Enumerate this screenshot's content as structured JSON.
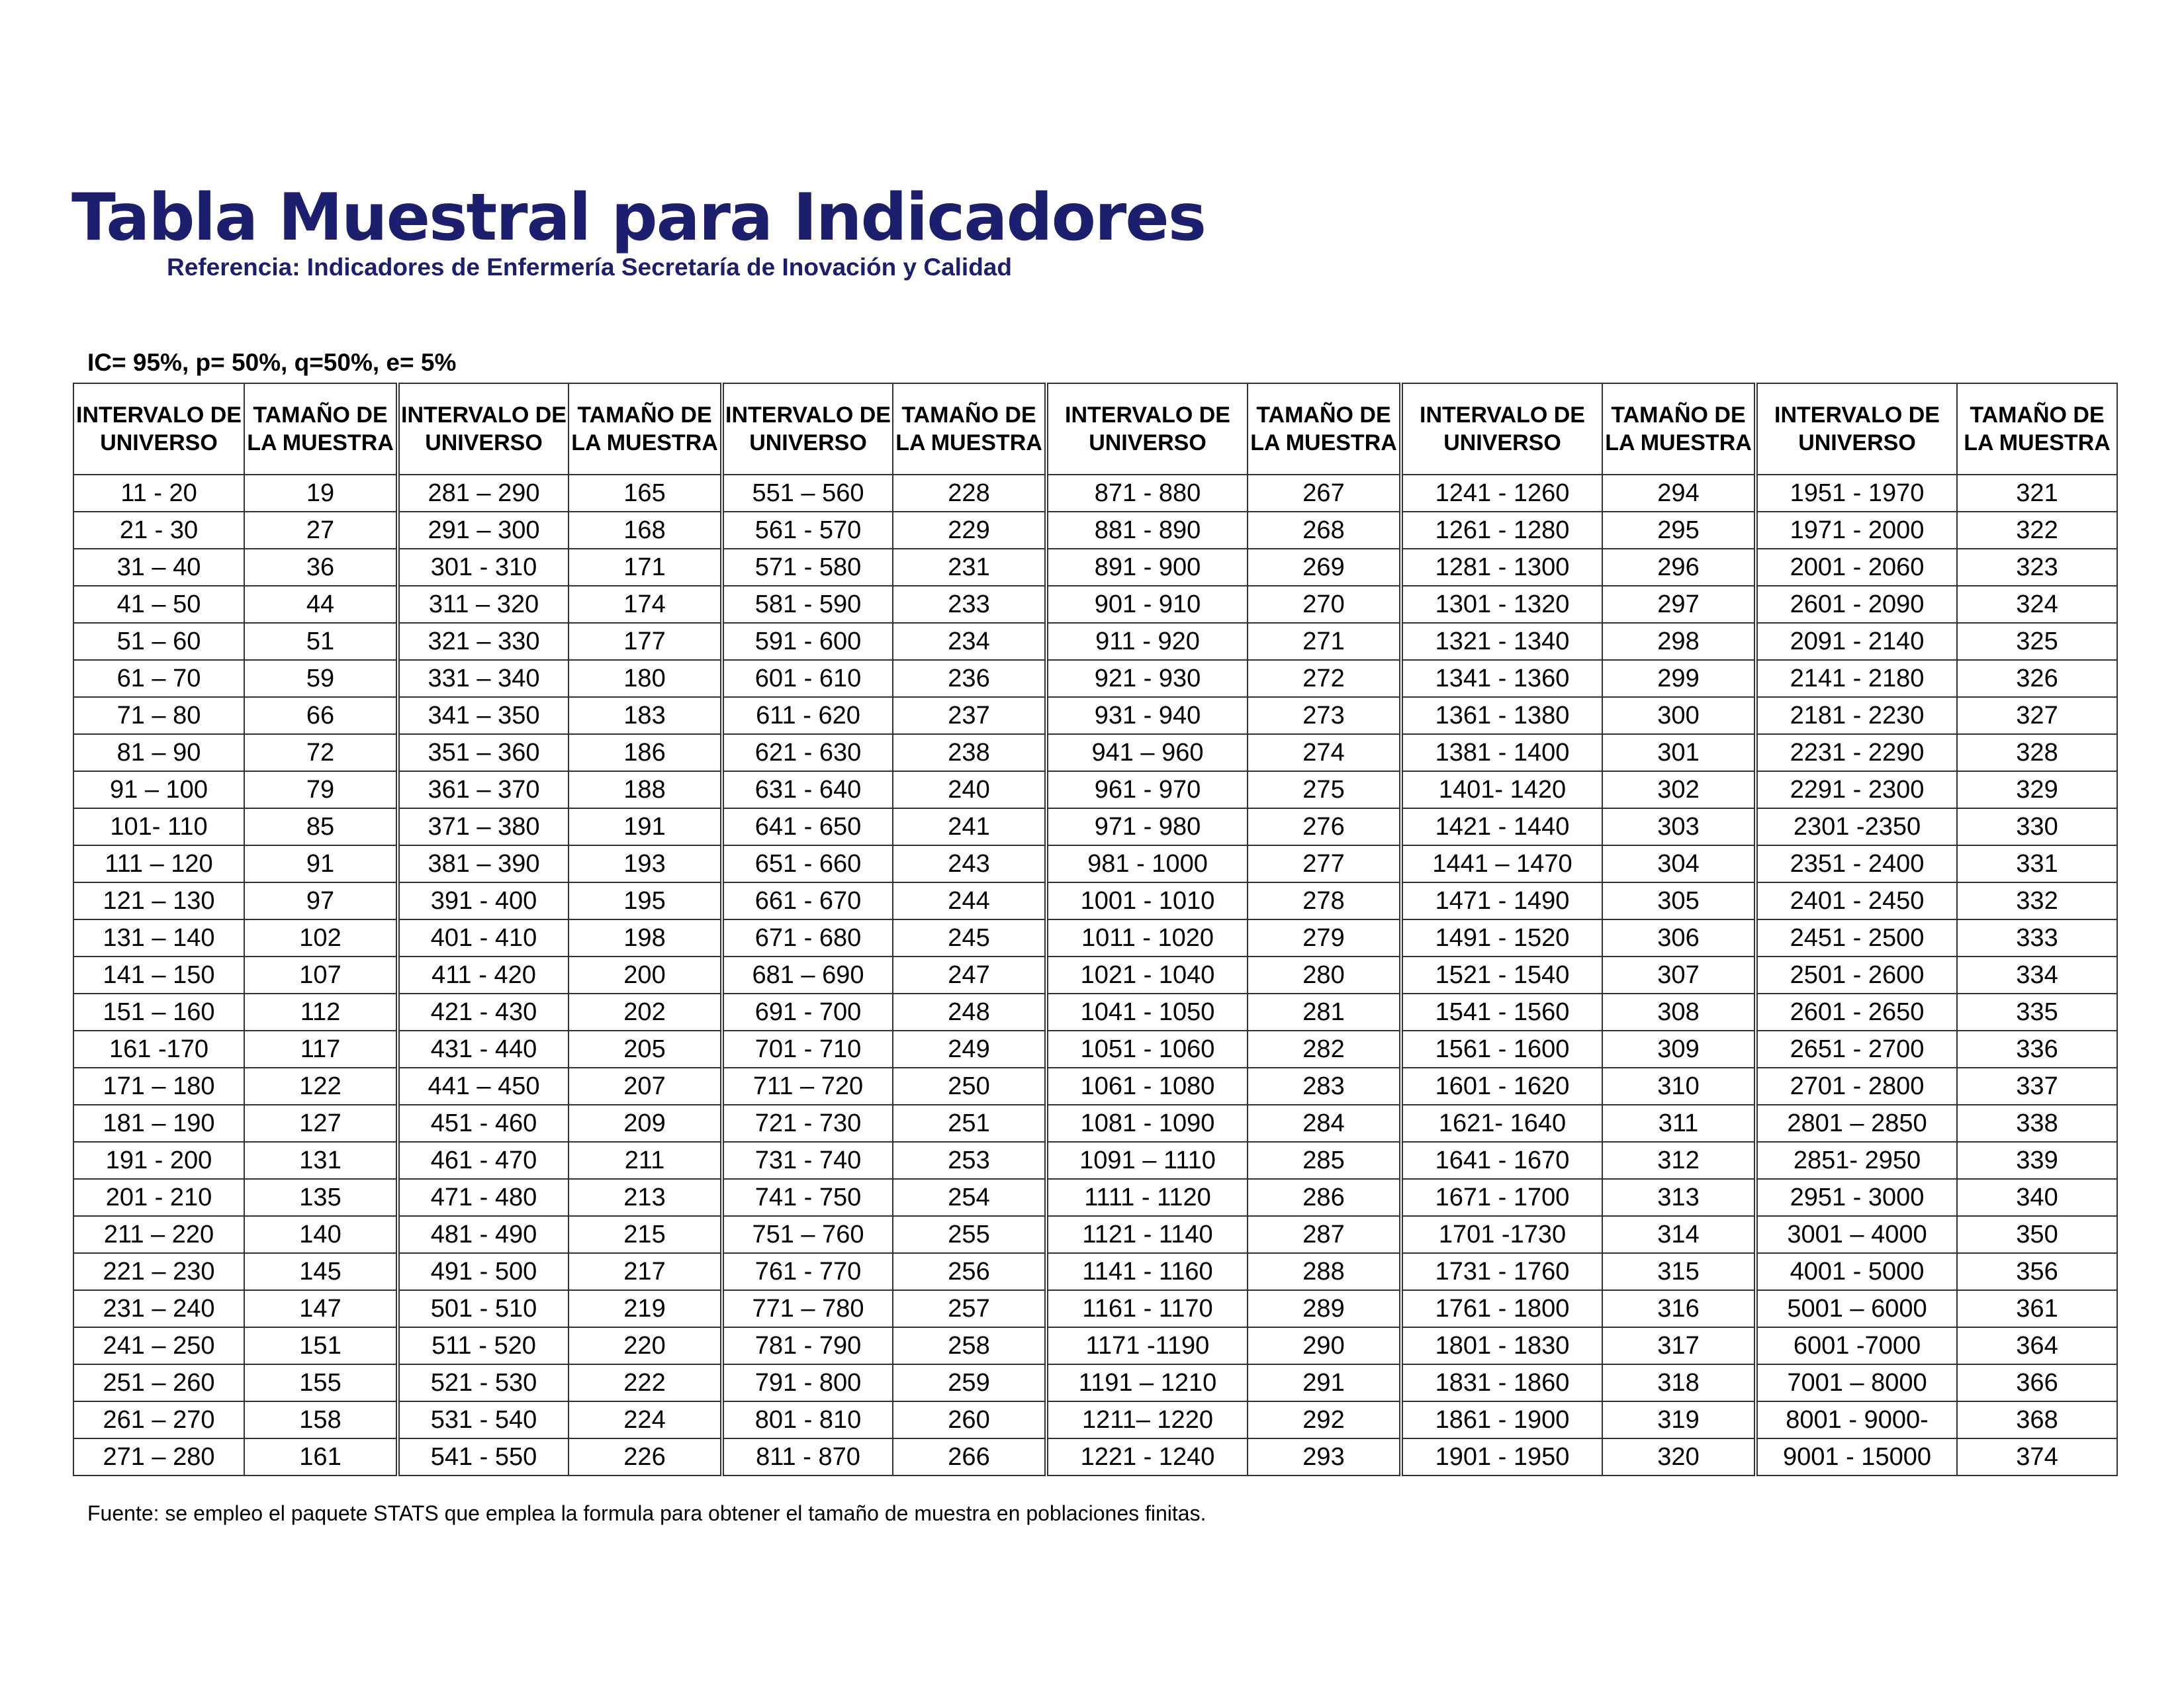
{
  "title": "Tabla Muestral para Indicadores",
  "subtitle": "Referencia: Indicadores de Enfermería Secretaría de Inovación y Calidad",
  "params": "IC= 95%, p= 50%, q=50%, e= 5%",
  "colors": {
    "title": "#1b1f6e",
    "grid": "#333333"
  },
  "headers": [
    "INTERVALO DE UNIVERSO",
    "TAMAÑO DE LA MUESTRA",
    "INTERVALO DE UNIVERSO",
    "TAMAÑO DE LA MUESTRA",
    "INTERVALO DE UNIVERSO",
    "TAMAÑO DE LA MUESTRA",
    "INTERVALO DE UNIVERSO",
    "TAMAÑO DE LA MUESTRA",
    "INTERVALO DE UNIVERSO",
    "TAMAÑO DE LA MUESTRA",
    "INTERVALO DE UNIVERSO",
    "TAMAÑO DE LA MUESTRA"
  ],
  "groups": [
    {
      "intervals": [
        "11 - 20",
        "21 - 30",
        "31 – 40",
        "41 – 50",
        "51 – 60",
        "61 – 70",
        "71 – 80",
        "81 – 90",
        "91 – 100",
        "101- 110",
        "111 – 120",
        "121 – 130",
        "131 – 140",
        "141 – 150",
        "151 – 160",
        "161 -170",
        "171 – 180",
        "181 – 190",
        "191 - 200",
        "201 - 210",
        "211 – 220",
        "221 – 230",
        "231 – 240",
        "241 – 250",
        "251 – 260",
        "261 – 270",
        "271 – 280"
      ],
      "sizes": [
        "19",
        "27",
        "36",
        "44",
        "51",
        "59",
        "66",
        "72",
        "79",
        "85",
        "91",
        "97",
        "102",
        "107",
        "112",
        "117",
        "122",
        "127",
        "131",
        "135",
        "140",
        "145",
        "147",
        "151",
        "155",
        "158",
        "161"
      ]
    },
    {
      "intervals": [
        "281 – 290",
        "291 – 300",
        "301 - 310",
        "311 – 320",
        "321 – 330",
        "331 – 340",
        "341 – 350",
        "351 – 360",
        "361 – 370",
        "371 – 380",
        "381 – 390",
        "391 - 400",
        "401 - 410",
        "411 - 420",
        "421 - 430",
        "431 - 440",
        "441 – 450",
        "451 - 460",
        "461 - 470",
        "471 - 480",
        "481 - 490",
        "491 - 500",
        "501 -  510",
        "511 - 520",
        "521 - 530",
        "531 - 540",
        "541 - 550"
      ],
      "sizes": [
        "165",
        "168",
        "171",
        "174",
        "177",
        "180",
        "183",
        "186",
        "188",
        "191",
        "193",
        "195",
        "198",
        "200",
        "202",
        "205",
        "207",
        "209",
        "211",
        "213",
        "215",
        "217",
        "219",
        "220",
        "222",
        "224",
        "226"
      ]
    },
    {
      "intervals": [
        "551 – 560",
        "561 - 570",
        "571 - 580",
        "581 - 590",
        "591 - 600",
        "601 - 610",
        "611 - 620",
        "621 - 630",
        "631 - 640",
        "641 - 650",
        "651 - 660",
        "661 - 670",
        "671 - 680",
        "681 – 690",
        "691 - 700",
        "701 - 710",
        "711 – 720",
        "721 - 730",
        "731 - 740",
        "741 - 750",
        "751 – 760",
        "761 - 770",
        "771 – 780",
        "781 - 790",
        "791 - 800",
        "801 - 810",
        "811 - 870"
      ],
      "sizes": [
        "228",
        "229",
        "231",
        "233",
        "234",
        "236",
        "237",
        "238",
        "240",
        "241",
        "243",
        "244",
        "245",
        "247",
        "248",
        "249",
        "250",
        "251",
        "253",
        "254",
        "255",
        "256",
        "257",
        "258",
        "259",
        "260",
        "266"
      ]
    },
    {
      "intervals": [
        "871 - 880",
        "881 - 890",
        "891 - 900",
        "901 - 910",
        "911 - 920",
        "921 - 930",
        "931 - 940",
        "941 – 960",
        "961 - 970",
        "971 - 980",
        "981 - 1000",
        "1001 - 1010",
        "1011 - 1020",
        "1021 - 1040",
        "1041 - 1050",
        "1051 - 1060",
        "1061 - 1080",
        "1081 - 1090",
        "1091 – 1110",
        "1111 - 1120",
        "1121 - 1140",
        "1141 - 1160",
        "1161 - 1170",
        "1171 -1190",
        "1191 – 1210",
        "1211– 1220",
        "1221 - 1240"
      ],
      "sizes": [
        "267",
        "268",
        "269",
        "270",
        "271",
        "272",
        "273",
        "274",
        "275",
        "276",
        "277",
        "278",
        "279",
        "280",
        "281",
        "282",
        "283",
        "284",
        "285",
        "286",
        "287",
        "288",
        "289",
        "290",
        "291",
        "292",
        "293"
      ]
    },
    {
      "intervals": [
        "1241 - 1260",
        "1261 - 1280",
        "1281 - 1300",
        "1301 - 1320",
        "1321 - 1340",
        "1341 - 1360",
        "1361 - 1380",
        "1381 - 1400",
        "1401- 1420",
        "1421 - 1440",
        "1441 – 1470",
        "1471 - 1490",
        "1491 - 1520",
        "1521 - 1540",
        "1541 - 1560",
        "1561 - 1600",
        "1601 - 1620",
        "1621- 1640",
        "1641 - 1670",
        "1671 - 1700",
        "1701 -1730",
        "1731 - 1760",
        "1761 - 1800",
        "1801 - 1830",
        "1831 - 1860",
        "1861 - 1900",
        "1901 - 1950"
      ],
      "sizes": [
        "294",
        "295",
        "296",
        "297",
        "298",
        "299",
        "300",
        "301",
        "302",
        "303",
        "304",
        "305",
        "306",
        "307",
        "308",
        "309",
        "310",
        "311",
        "312",
        "313",
        "314",
        "315",
        "316",
        "317",
        "318",
        "319",
        "320"
      ]
    },
    {
      "intervals": [
        "1951 - 1970",
        "1971 - 2000",
        "2001 - 2060",
        "2601 - 2090",
        "2091 - 2140",
        "2141 - 2180",
        "2181 - 2230",
        "2231 - 2290",
        "2291 - 2300",
        "2301 -2350",
        "2351 - 2400",
        "2401 - 2450",
        "2451 - 2500",
        "2501 - 2600",
        "2601 - 2650",
        "2651 - 2700",
        "2701 - 2800",
        "2801 – 2850",
        "2851- 2950",
        "2951 - 3000",
        "3001 – 4000",
        "4001 - 5000",
        "5001 – 6000",
        "6001 -7000",
        "7001 – 8000",
        "8001 - 9000-",
        "9001 - 15000"
      ],
      "sizes": [
        "321",
        "322",
        "323",
        "324",
        "325",
        "326",
        "327",
        "328",
        "329",
        "330",
        "331",
        "332",
        "333",
        "334",
        "335",
        "336",
        "337",
        "338",
        "339",
        "340",
        "350",
        "356",
        "361",
        "364",
        "366",
        "368",
        "374"
      ]
    }
  ],
  "footer": "Fuente: se empleo el paquete STATS que emplea la formula para obtener el tamaño de muestra en poblaciones finitas."
}
